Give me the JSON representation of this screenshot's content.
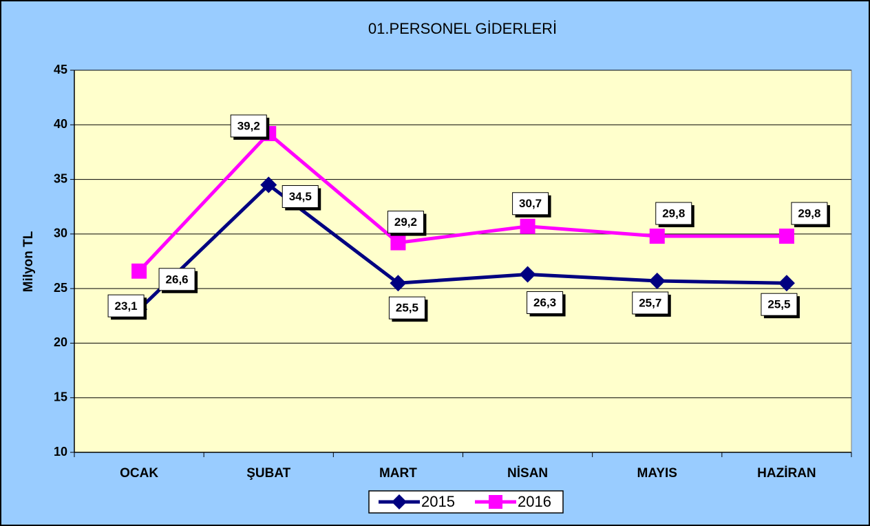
{
  "chart_data": {
    "type": "line",
    "title": "01.PERSONEL GİDERLERİ",
    "y_label": "Milyon TL",
    "categories": [
      "OCAK",
      "ŞUBAT",
      "MART",
      "NİSAN",
      "MAYIS",
      "HAZİRAN"
    ],
    "series": [
      {
        "name": "2015",
        "color": "#000080",
        "marker": "diamond",
        "values": [
          23.1,
          34.5,
          25.5,
          26.3,
          25.7,
          25.5
        ],
        "value_labels": [
          "23,1",
          "34,5",
          "25,5",
          "26,3",
          "25,7",
          "25,5"
        ]
      },
      {
        "name": "2016",
        "color": "#ff00ff",
        "marker": "square",
        "values": [
          26.6,
          39.2,
          29.2,
          30.7,
          29.8,
          29.8
        ],
        "value_labels": [
          "26,6",
          "39,2",
          "29,2",
          "30,7",
          "29,8",
          "29,8"
        ]
      }
    ],
    "ylim": [
      10,
      45
    ],
    "yticks": [
      10,
      15,
      20,
      25,
      30,
      35,
      40,
      45
    ],
    "grid": true,
    "legend": "bottom"
  }
}
